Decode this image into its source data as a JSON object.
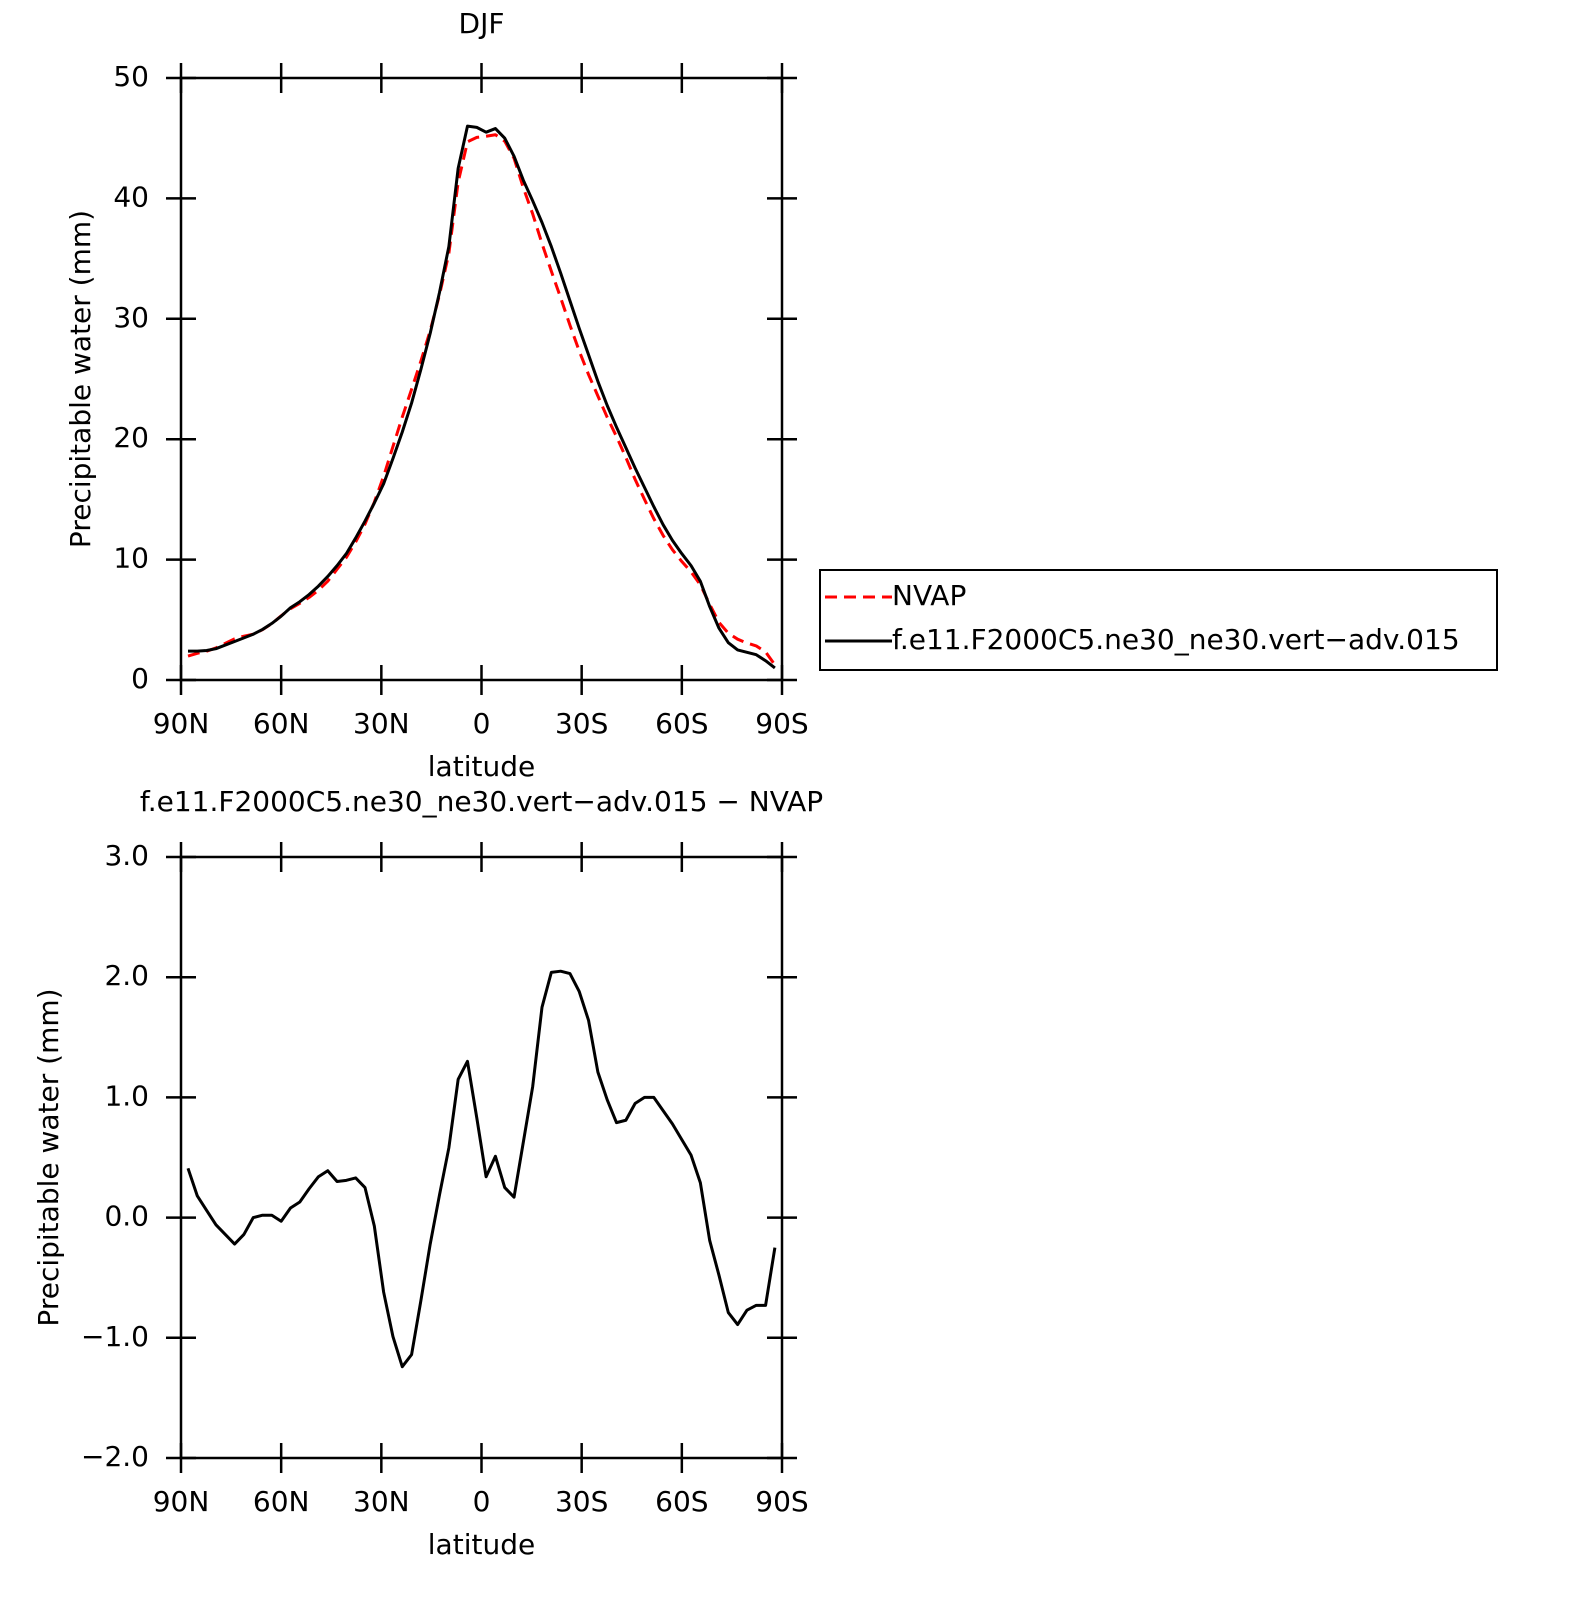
{
  "chart_data": [
    {
      "type": "line",
      "title": "DJF",
      "xlabel": "latitude",
      "ylabel": "Precipitable water (mm)",
      "xlim": [
        90,
        -90
      ],
      "ylim": [
        0,
        50
      ],
      "xticks": [
        {
          "value": 90,
          "label": "90N"
        },
        {
          "value": 60,
          "label": "60N"
        },
        {
          "value": 30,
          "label": "30N"
        },
        0,
        {
          "value": -30,
          "label": "30S"
        },
        {
          "value": -60,
          "label": "60S"
        },
        {
          "value": -90,
          "label": "90S"
        }
      ],
      "yticks": [
        0,
        10,
        20,
        30,
        40,
        50
      ],
      "legend": "outside-right",
      "x": [
        87.9,
        85.11,
        82.32,
        79.53,
        76.74,
        73.95,
        71.16,
        68.37,
        65.58,
        62.79,
        60.0,
        57.21,
        54.42,
        51.63,
        48.84,
        46.05,
        43.26,
        40.47,
        37.68,
        34.89,
        32.1,
        29.31,
        26.52,
        23.73,
        20.94,
        18.15,
        15.36,
        12.57,
        9.78,
        6.99,
        4.2,
        1.41,
        -1.38,
        -4.17,
        -6.96,
        -9.75,
        -12.54,
        -15.33,
        -18.12,
        -20.91,
        -23.7,
        -26.49,
        -29.28,
        -32.07,
        -34.86,
        -37.65,
        -40.44,
        -43.23,
        -46.02,
        -48.81,
        -51.6,
        -54.39,
        -57.18,
        -59.97,
        -62.76,
        -65.55,
        -68.34,
        -71.13,
        -73.92,
        -76.71,
        -79.5,
        -82.29,
        -85.08,
        -87.87
      ],
      "series": [
        {
          "name": "NVAP",
          "color": "#ff0000",
          "dashed": true,
          "values": [
            1.99,
            2.22,
            2.39,
            2.66,
            3.04,
            3.42,
            3.64,
            3.8,
            4.18,
            4.68,
            5.33,
            5.92,
            6.37,
            6.86,
            7.46,
            8.21,
            9.2,
            10.19,
            11.47,
            12.95,
            14.77,
            16.92,
            19.39,
            21.84,
            24.14,
            26.49,
            29.02,
            32.01,
            35.42,
            41.35,
            44.7,
            45.07,
            45.16,
            45.29,
            44.75,
            43.33,
            40.87,
            38.71,
            36.25,
            33.96,
            31.75,
            29.47,
            27.32,
            25.36,
            23.59,
            21.82,
            20.21,
            18.49,
            16.65,
            15.0,
            13.4,
            12.01,
            10.82,
            9.85,
            8.98,
            7.91,
            6.29,
            4.78,
            3.89,
            3.39,
            3.07,
            2.83,
            2.33,
            1.25
          ]
        },
        {
          "name": "f.e11.F2000C5.ne30_ne30.vert−adv.015",
          "color": "#000000",
          "dashed": false,
          "values": [
            2.4,
            2.4,
            2.45,
            2.6,
            2.9,
            3.2,
            3.5,
            3.8,
            4.2,
            4.7,
            5.3,
            6.0,
            6.5,
            7.1,
            7.8,
            8.6,
            9.5,
            10.5,
            11.8,
            13.2,
            14.7,
            16.3,
            18.4,
            20.6,
            23.0,
            25.8,
            28.8,
            32.2,
            36.0,
            42.5,
            46.0,
            45.9,
            45.5,
            45.8,
            45.0,
            43.5,
            41.5,
            39.8,
            38.0,
            36.0,
            33.8,
            31.5,
            29.2,
            27.0,
            24.8,
            22.8,
            21.0,
            19.3,
            17.6,
            16.0,
            14.4,
            12.9,
            11.6,
            10.5,
            9.5,
            8.2,
            6.1,
            4.3,
            3.1,
            2.5,
            2.3,
            2.1,
            1.6,
            1.0
          ]
        }
      ]
    },
    {
      "type": "line",
      "title": "f.e11.F2000C5.ne30_ne30.vert−adv.015  −  NVAP",
      "xlabel": "latitude",
      "ylabel": "Precipitable water (mm)",
      "xlim": [
        90,
        -90
      ],
      "ylim": [
        -2,
        3
      ],
      "xticks": [
        {
          "value": 90,
          "label": "90N"
        },
        {
          "value": 60,
          "label": "60N"
        },
        {
          "value": 30,
          "label": "30N"
        },
        0,
        {
          "value": -30,
          "label": "30S"
        },
        {
          "value": -60,
          "label": "60S"
        },
        {
          "value": -90,
          "label": "90S"
        }
      ],
      "yticks": [
        {
          "value": 3,
          "label": "3.0"
        },
        {
          "value": 2,
          "label": "2.0"
        },
        {
          "value": 1,
          "label": "1.0"
        },
        {
          "value": 0,
          "label": "0.0"
        },
        {
          "value": -1,
          "label": "−1.0"
        },
        {
          "value": -2,
          "label": "−2.0"
        }
      ],
      "x": [
        87.9,
        85.11,
        82.32,
        79.53,
        76.74,
        73.95,
        71.16,
        68.37,
        65.58,
        62.79,
        60.0,
        57.21,
        54.42,
        51.63,
        48.84,
        46.05,
        43.26,
        40.47,
        37.68,
        34.89,
        32.1,
        29.31,
        26.52,
        23.73,
        20.94,
        18.15,
        15.36,
        12.57,
        9.78,
        6.99,
        4.2,
        1.41,
        -1.38,
        -4.17,
        -6.96,
        -9.75,
        -12.54,
        -15.33,
        -18.12,
        -20.91,
        -23.7,
        -26.49,
        -29.28,
        -32.07,
        -34.86,
        -37.65,
        -40.44,
        -43.23,
        -46.02,
        -48.81,
        -51.6,
        -54.39,
        -57.18,
        -59.97,
        -62.76,
        -65.55,
        -68.34,
        -71.13,
        -73.92,
        -76.71,
        -79.5,
        -82.29,
        -85.08,
        -87.87
      ],
      "color": "#000000",
      "values": [
        0.41,
        0.18,
        0.06,
        -0.06,
        -0.14,
        -0.22,
        -0.14,
        0.0,
        0.02,
        0.02,
        -0.03,
        0.08,
        0.13,
        0.24,
        0.34,
        0.39,
        0.3,
        0.31,
        0.33,
        0.25,
        -0.07,
        -0.62,
        -0.99,
        -1.24,
        -1.14,
        -0.69,
        -0.22,
        0.19,
        0.58,
        1.15,
        1.3,
        0.83,
        0.34,
        0.51,
        0.25,
        0.17,
        0.63,
        1.09,
        1.75,
        2.04,
        2.05,
        2.03,
        1.88,
        1.64,
        1.21,
        0.98,
        0.79,
        0.81,
        0.95,
        1.0,
        1.0,
        0.89,
        0.78,
        0.65,
        0.52,
        0.29,
        -0.19,
        -0.48,
        -0.79,
        -0.89,
        -0.77,
        -0.73,
        -0.73,
        -0.25
      ]
    }
  ]
}
